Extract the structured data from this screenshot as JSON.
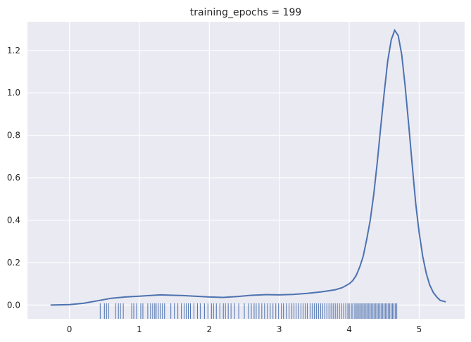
{
  "chart_data": {
    "type": "line",
    "title": "training_epochs = 199",
    "xlabel": "",
    "ylabel": "",
    "xlim": [
      -0.6,
      5.65
    ],
    "ylim": [
      -0.065,
      1.335
    ],
    "xticks": [
      0,
      1,
      2,
      3,
      4,
      5
    ],
    "yticks": [
      0.0,
      0.2,
      0.4,
      0.6,
      0.8,
      1.0,
      1.2
    ],
    "ytick_labels": [
      "0.0",
      "0.2",
      "0.4",
      "0.6",
      "0.8",
      "1.0",
      "1.2"
    ],
    "grid": true,
    "background": "#eaeaf2",
    "grid_color": "#ffffff",
    "series": [
      {
        "color": "#4c72b0",
        "x": [
          -0.27,
          0.0,
          0.2,
          0.4,
          0.6,
          0.8,
          1.0,
          1.3,
          1.6,
          2.0,
          2.2,
          2.4,
          2.6,
          2.8,
          3.0,
          3.2,
          3.4,
          3.6,
          3.8,
          3.9,
          4.0,
          4.05,
          4.1,
          4.15,
          4.2,
          4.25,
          4.3,
          4.35,
          4.4,
          4.45,
          4.5,
          4.55,
          4.6,
          4.65,
          4.7,
          4.75,
          4.8,
          4.85,
          4.9,
          4.95,
          5.0,
          5.05,
          5.1,
          5.15,
          5.2,
          5.25,
          5.3,
          5.38
        ],
        "y": [
          0.0,
          0.002,
          0.008,
          0.02,
          0.032,
          0.038,
          0.042,
          0.048,
          0.045,
          0.038,
          0.036,
          0.04,
          0.046,
          0.049,
          0.048,
          0.05,
          0.055,
          0.062,
          0.072,
          0.082,
          0.1,
          0.115,
          0.14,
          0.18,
          0.23,
          0.31,
          0.4,
          0.52,
          0.67,
          0.84,
          1.0,
          1.15,
          1.25,
          1.295,
          1.27,
          1.18,
          1.03,
          0.85,
          0.66,
          0.48,
          0.34,
          0.23,
          0.15,
          0.095,
          0.06,
          0.038,
          0.022,
          0.015
        ]
      }
    ],
    "rug": {
      "color": "#4c72b0",
      "values": [
        0.44,
        0.5,
        0.53,
        0.56,
        0.66,
        0.7,
        0.73,
        0.77,
        0.89,
        0.92,
        0.96,
        1.02,
        1.05,
        1.12,
        1.16,
        1.19,
        1.22,
        1.24,
        1.27,
        1.3,
        1.33,
        1.36,
        1.45,
        1.5,
        1.55,
        1.6,
        1.64,
        1.67,
        1.7,
        1.73,
        1.78,
        1.83,
        1.87,
        1.93,
        1.98,
        2.03,
        2.06,
        2.1,
        2.15,
        2.2,
        2.23,
        2.27,
        2.31,
        2.36,
        2.42,
        2.5,
        2.56,
        2.6,
        2.64,
        2.67,
        2.71,
        2.75,
        2.79,
        2.83,
        2.87,
        2.91,
        2.95,
        2.99,
        3.03,
        3.06,
        3.1,
        3.14,
        3.18,
        3.21,
        3.24,
        3.27,
        3.31,
        3.34,
        3.37,
        3.4,
        3.44,
        3.47,
        3.5,
        3.53,
        3.56,
        3.59,
        3.62,
        3.65,
        3.68,
        3.71,
        3.74,
        3.77,
        3.8,
        3.83,
        3.86,
        3.89,
        3.92,
        3.95,
        3.98,
        4.0,
        4.03,
        4.05,
        4.08,
        4.1,
        4.12,
        4.14,
        4.16,
        4.18,
        4.2,
        4.22,
        4.24,
        4.26,
        4.28,
        4.3,
        4.32,
        4.34,
        4.36,
        4.38,
        4.4,
        4.42,
        4.44,
        4.46,
        4.48,
        4.5,
        4.52,
        4.54,
        4.56,
        4.58,
        4.6,
        4.62,
        4.64,
        4.66,
        4.68
      ]
    }
  }
}
